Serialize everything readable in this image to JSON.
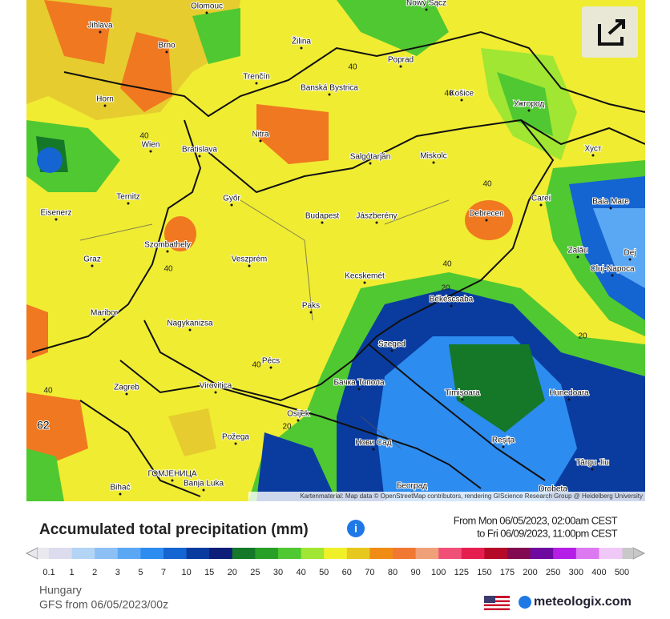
{
  "map": {
    "cities": [
      "Olomouc",
      "Jihlava",
      "Brno",
      "Žilina",
      "Nowy Sącz",
      "Poprad",
      "Trenčín",
      "Banská Bystrica",
      "Košice",
      "Ужгород",
      "Horn",
      "Nitra",
      "Wien",
      "Bratislava",
      "Salgótarján",
      "Miskolc",
      "Хуст",
      "Ternitz",
      "Győr",
      "Carei",
      "Baia Mare",
      "Eisenerz",
      "Budapest",
      "Jászberény",
      "Debrecen",
      "Szombathely",
      "Veszprém",
      "Zalău",
      "Graz",
      "Dej",
      "Kecskemét",
      "Cluj-Napoca",
      "Maribor",
      "Békéscsaba",
      "Paks",
      "Nagykanizsa",
      "Szeged",
      "Pécs",
      "Hunedoara",
      "Zagreb",
      "Virovitica",
      "Бачка Топола",
      "Timișoara",
      "Osijek",
      "Požega",
      "Нови Сад",
      "Reșița",
      "ГОМЈЕНИЦА",
      "Târgu Jiu",
      "Bihać",
      "Banja Luka",
      "Београд",
      "Drobeta"
    ],
    "contour_labels": [
      40,
      40,
      40,
      40,
      40,
      40,
      40,
      20,
      20,
      20,
      40
    ],
    "max_label": 62,
    "attribution": "Kartenmaterial: Map data © OpenStreetMap contributors, rendering GIScience Research Group @ Heidelberg University"
  },
  "legend": {
    "title": "Accumulated total precipitation (mm)",
    "period_from": "From Mon 06/05/2023, 02:00am CEST",
    "period_to": "to Fri 06/09/2023, 11:00pm CEST",
    "labels": [
      0.1,
      1,
      2,
      3,
      5,
      7,
      10,
      15,
      20,
      25,
      30,
      40,
      50,
      60,
      70,
      80,
      90,
      100,
      125,
      150,
      175,
      200,
      250,
      300,
      400,
      500
    ],
    "colors": [
      "#dcdcee",
      "#b4d4f6",
      "#8cc0f4",
      "#5aa8f4",
      "#2d8cf0",
      "#1464d2",
      "#0a3ca0",
      "#0c1e78",
      "#147828",
      "#28a028",
      "#50c832",
      "#a0e632",
      "#f0f028",
      "#e6c81e",
      "#f08c14",
      "#f07832",
      "#f0a078",
      "#f05078",
      "#e61e50",
      "#b40a28",
      "#820a50",
      "#6e0aa0",
      "#b41ee6",
      "#dc78f0",
      "#f0c8f8"
    ]
  },
  "footer": {
    "region": "Hungary",
    "model": "GFS from 06/05/2023/00z",
    "brand": "meteologix.com"
  }
}
